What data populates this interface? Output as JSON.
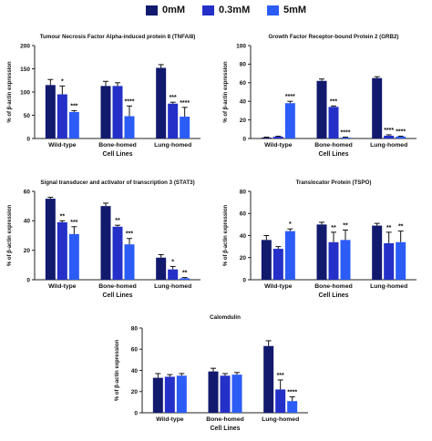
{
  "legend": [
    {
      "label": "0mM",
      "color": "#121a6e"
    },
    {
      "label": "0.3mM",
      "color": "#2430c8"
    },
    {
      "label": "5mM",
      "color": "#2b5cf6"
    }
  ],
  "chart_data": [
    {
      "type": "bar",
      "title": "Tumour Necrosis Factor Alpha-induced protein 8 (TNFAI8)",
      "xlabel": "Cell Lines",
      "ylabel": "% of β-actin expression",
      "ylim": [
        0,
        200
      ],
      "yticks": [
        "0",
        "50",
        "100",
        "150",
        "200"
      ],
      "categories": [
        "Wild-type",
        "Bone-homed",
        "Lung-homed"
      ],
      "series": [
        {
          "name": "0mM",
          "values": [
            115,
            113,
            152
          ],
          "errors": [
            12,
            10,
            7
          ],
          "sig": [
            "",
            "",
            ""
          ]
        },
        {
          "name": "0.3mM",
          "values": [
            95,
            113,
            75
          ],
          "errors": [
            18,
            7,
            3
          ],
          "sig": [
            "*",
            "",
            "***"
          ]
        },
        {
          "name": "5mM",
          "values": [
            57,
            48,
            47
          ],
          "errors": [
            3,
            22,
            20
          ],
          "sig": [
            "***",
            "****",
            "****"
          ]
        }
      ]
    },
    {
      "type": "bar",
      "title": "Growth Factor Receptor-bound Protein 2 (GRB2)",
      "xlabel": "Cell Lines",
      "ylabel": "% of β-actin expression",
      "ylim": [
        0,
        100
      ],
      "yticks": [
        "0",
        "20",
        "40",
        "60",
        "80",
        "100"
      ],
      "categories": [
        "Wild-type",
        "Bone-homed",
        "Lung-homed"
      ],
      "series": [
        {
          "name": "0mM",
          "values": [
            1,
            62,
            65
          ],
          "errors": [
            0.5,
            2,
            1.5
          ],
          "sig": [
            "",
            "",
            ""
          ]
        },
        {
          "name": "0.3mM",
          "values": [
            2,
            34,
            3
          ],
          "errors": [
            0.5,
            1,
            1
          ],
          "sig": [
            "",
            "***",
            "****"
          ]
        },
        {
          "name": "5mM",
          "values": [
            38,
            1,
            2
          ],
          "errors": [
            2,
            0.5,
            0.5
          ],
          "sig": [
            "****",
            "****",
            "****"
          ]
        }
      ]
    },
    {
      "type": "bar",
      "title": "Signal transducer and activator of transcription 3 (STAT3)",
      "xlabel": "Cell Lines",
      "ylabel": "% of β-actin expression",
      "ylim": [
        0,
        60
      ],
      "yticks": [
        "0",
        "20",
        "40",
        "60"
      ],
      "categories": [
        "Wild-type",
        "Bone-homed",
        "Lung-homed"
      ],
      "series": [
        {
          "name": "0mM",
          "values": [
            55,
            50,
            15
          ],
          "errors": [
            1,
            2,
            2
          ],
          "sig": [
            "",
            "",
            ""
          ]
        },
        {
          "name": "0.3mM",
          "values": [
            39,
            36,
            7
          ],
          "errors": [
            1,
            1,
            2
          ],
          "sig": [
            "**",
            "**",
            "*"
          ]
        },
        {
          "name": "5mM",
          "values": [
            31,
            24,
            1
          ],
          "errors": [
            5,
            4,
            0.5
          ],
          "sig": [
            "***",
            "***",
            "**"
          ]
        }
      ]
    },
    {
      "type": "bar",
      "title": "Translocator Protein (TSPO)",
      "xlabel": "Cell Lines",
      "ylabel": "% of β-actin expression",
      "ylim": [
        0,
        80
      ],
      "yticks": [
        "0",
        "20",
        "40",
        "60",
        "80"
      ],
      "categories": [
        "Wild-type",
        "Bone-homed",
        "Lung-homed"
      ],
      "series": [
        {
          "name": "0mM",
          "values": [
            36,
            50,
            49
          ],
          "errors": [
            4,
            2,
            2
          ],
          "sig": [
            "",
            "",
            ""
          ]
        },
        {
          "name": "0.3mM",
          "values": [
            28,
            34,
            33
          ],
          "errors": [
            2,
            9,
            10
          ],
          "sig": [
            "",
            "**",
            "**"
          ]
        },
        {
          "name": "5mM",
          "values": [
            44,
            36,
            34
          ],
          "errors": [
            2,
            9,
            10
          ],
          "sig": [
            "*",
            "**",
            "**"
          ]
        }
      ]
    },
    {
      "type": "bar",
      "title": "Calomdulin",
      "xlabel": "Cell Lines",
      "ylabel": "% of β-actin expression",
      "ylim": [
        0,
        80
      ],
      "yticks": [
        "0",
        "20",
        "40",
        "60",
        "80"
      ],
      "categories": [
        "Wild-type",
        "Bone-homed",
        "Lung-homed"
      ],
      "series": [
        {
          "name": "0mM",
          "values": [
            33,
            39,
            63
          ],
          "errors": [
            4,
            3,
            5
          ],
          "sig": [
            "",
            "",
            ""
          ]
        },
        {
          "name": "0.3mM",
          "values": [
            34,
            35,
            22
          ],
          "errors": [
            2,
            2,
            9
          ],
          "sig": [
            "",
            "",
            "***"
          ]
        },
        {
          "name": "5mM",
          "values": [
            35,
            36,
            11
          ],
          "errors": [
            2,
            2,
            4
          ],
          "sig": [
            "",
            "",
            "****"
          ]
        }
      ]
    }
  ]
}
